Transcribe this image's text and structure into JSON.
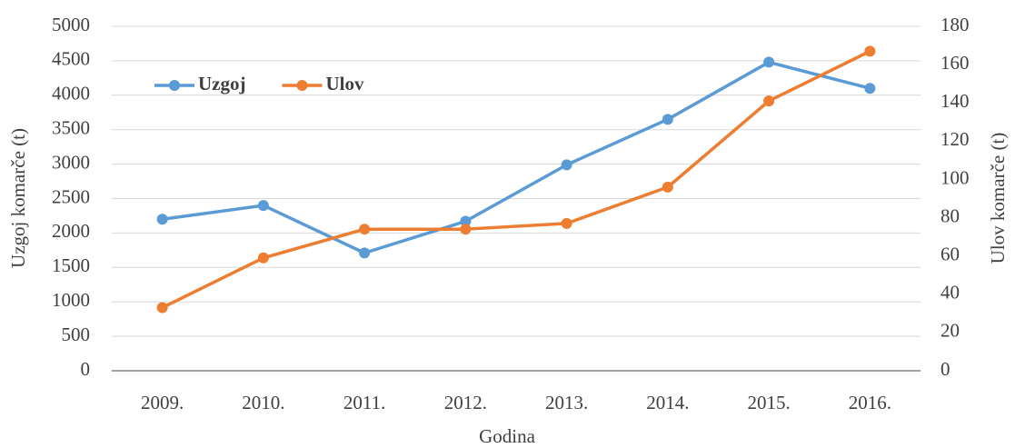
{
  "chart_data": {
    "type": "line",
    "x_label": "Godina",
    "y_label": "Uzgoj komarče  (t)",
    "y2_label": "Ulov komarče (t)",
    "categories": [
      "2009.",
      "2010.",
      "2011.",
      "2012.",
      "2013.",
      "2014.",
      "2015.",
      "2016."
    ],
    "series": [
      {
        "name": "Uzgoj",
        "color": "#5b9bd5",
        "values": [
          2200,
          2400,
          1710,
          2170,
          2990,
          3650,
          4480,
          4100
        ]
      },
      {
        "name": "Ulov",
        "color": "#ed7d31",
        "axis": "y2",
        "values": [
          33,
          59,
          74,
          74,
          77,
          96,
          141,
          167
        ]
      }
    ],
    "ylim": [
      0,
      5000
    ],
    "yticks": [
      0,
      500,
      1000,
      1500,
      2000,
      2500,
      3000,
      3500,
      4000,
      4500,
      5000
    ],
    "y2lim": [
      0,
      180
    ],
    "y2ticks": [
      0,
      20,
      40,
      60,
      80,
      100,
      120,
      140,
      160,
      180
    ],
    "grid": true,
    "legend": "upper left"
  }
}
